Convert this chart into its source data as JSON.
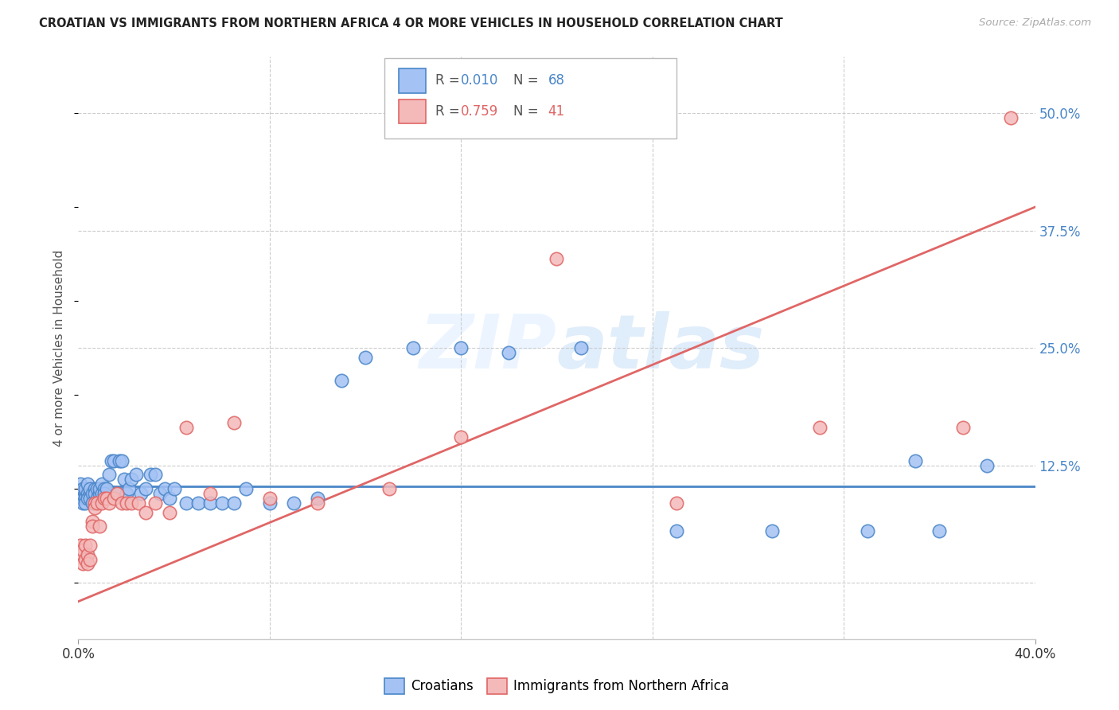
{
  "title": "CROATIAN VS IMMIGRANTS FROM NORTHERN AFRICA 4 OR MORE VEHICLES IN HOUSEHOLD CORRELATION CHART",
  "source": "Source: ZipAtlas.com",
  "ylabel": "4 or more Vehicles in Household",
  "color_croatian_fill": "#a4c2f4",
  "color_croatian_edge": "#4a86c8",
  "color_na_fill": "#f4b9b9",
  "color_na_edge": "#e06666",
  "label_croatian": "Croatians",
  "label_na": "Immigrants from Northern Africa",
  "R_croatian": "0.010",
  "N_croatian": "68",
  "R_na": "0.759",
  "N_na": "41",
  "croatian_x": [
    0.001,
    0.001,
    0.002,
    0.002,
    0.002,
    0.003,
    0.003,
    0.003,
    0.003,
    0.004,
    0.004,
    0.004,
    0.005,
    0.005,
    0.005,
    0.006,
    0.006,
    0.007,
    0.007,
    0.008,
    0.008,
    0.009,
    0.009,
    0.01,
    0.01,
    0.011,
    0.011,
    0.012,
    0.013,
    0.014,
    0.015,
    0.016,
    0.017,
    0.018,
    0.019,
    0.02,
    0.021,
    0.022,
    0.024,
    0.026,
    0.028,
    0.03,
    0.032,
    0.034,
    0.036,
    0.038,
    0.04,
    0.045,
    0.05,
    0.055,
    0.06,
    0.065,
    0.07,
    0.08,
    0.09,
    0.1,
    0.11,
    0.12,
    0.14,
    0.16,
    0.18,
    0.21,
    0.25,
    0.29,
    0.33,
    0.36,
    0.38,
    0.35
  ],
  "croatian_y": [
    0.095,
    0.105,
    0.09,
    0.1,
    0.085,
    0.095,
    0.09,
    0.1,
    0.085,
    0.095,
    0.09,
    0.105,
    0.095,
    0.09,
    0.1,
    0.095,
    0.085,
    0.1,
    0.095,
    0.09,
    0.1,
    0.095,
    0.1,
    0.105,
    0.095,
    0.1,
    0.095,
    0.1,
    0.115,
    0.13,
    0.13,
    0.095,
    0.13,
    0.13,
    0.11,
    0.095,
    0.1,
    0.11,
    0.115,
    0.095,
    0.1,
    0.115,
    0.115,
    0.095,
    0.1,
    0.09,
    0.1,
    0.085,
    0.085,
    0.085,
    0.085,
    0.085,
    0.1,
    0.085,
    0.085,
    0.09,
    0.215,
    0.24,
    0.25,
    0.25,
    0.245,
    0.25,
    0.055,
    0.055,
    0.055,
    0.055,
    0.125,
    0.13
  ],
  "na_x": [
    0.001,
    0.001,
    0.002,
    0.002,
    0.003,
    0.003,
    0.004,
    0.004,
    0.005,
    0.005,
    0.006,
    0.006,
    0.007,
    0.007,
    0.008,
    0.009,
    0.01,
    0.011,
    0.012,
    0.013,
    0.015,
    0.016,
    0.018,
    0.02,
    0.022,
    0.025,
    0.028,
    0.032,
    0.038,
    0.045,
    0.055,
    0.065,
    0.08,
    0.1,
    0.13,
    0.16,
    0.2,
    0.25,
    0.31,
    0.37,
    0.39
  ],
  "na_y": [
    0.04,
    0.03,
    0.02,
    0.035,
    0.025,
    0.04,
    0.03,
    0.02,
    0.04,
    0.025,
    0.065,
    0.06,
    0.085,
    0.08,
    0.085,
    0.06,
    0.085,
    0.09,
    0.09,
    0.085,
    0.09,
    0.095,
    0.085,
    0.085,
    0.085,
    0.085,
    0.075,
    0.085,
    0.075,
    0.165,
    0.095,
    0.17,
    0.09,
    0.085,
    0.1,
    0.155,
    0.345,
    0.085,
    0.165,
    0.165,
    0.495
  ],
  "xlim": [
    0.0,
    0.4
  ],
  "ylim": [
    -0.06,
    0.56
  ],
  "yticks": [
    0.0,
    0.125,
    0.25,
    0.375,
    0.5
  ],
  "ytick_labels_right": [
    "",
    "12.5%",
    "25.0%",
    "37.5%",
    "50.0%"
  ],
  "xtick_grid": [
    0.08,
    0.16,
    0.24,
    0.32
  ],
  "bg_color": "#ffffff",
  "line_slope_na_forced_m": 1.05,
  "line_slope_na_forced_b": -0.02,
  "line_slope_cr_forced_m": 0.0,
  "line_slope_cr_forced_b": 0.103
}
